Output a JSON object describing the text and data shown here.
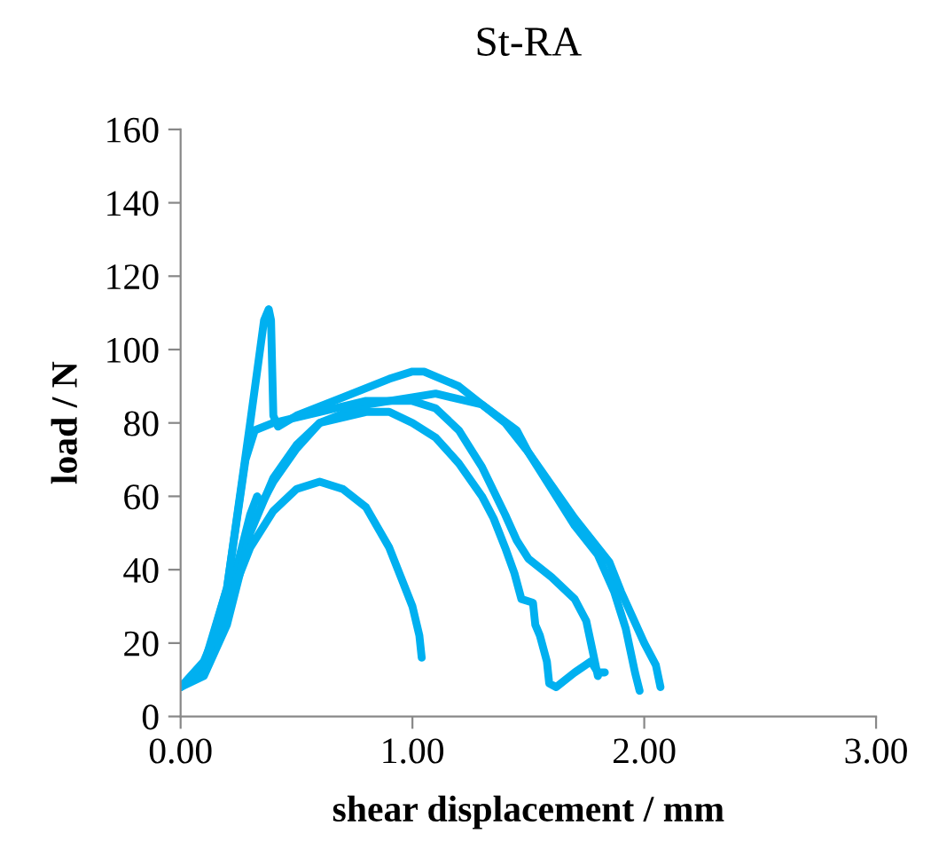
{
  "chart_data": {
    "type": "line",
    "title": "St-RA",
    "xlabel": "shear displacement / mm",
    "ylabel": "load / N",
    "xlim": [
      0,
      3
    ],
    "ylim": [
      0,
      160
    ],
    "xticks": [
      {
        "value": 0,
        "label": "0.00"
      },
      {
        "value": 1,
        "label": "1.00"
      },
      {
        "value": 2,
        "label": "2.00"
      },
      {
        "value": 3,
        "label": "3.00"
      }
    ],
    "yticks": [
      0,
      20,
      40,
      60,
      80,
      100,
      120,
      140,
      160
    ],
    "grid": false,
    "marker": "none",
    "line_style": "solid",
    "series": [
      {
        "color": "#00b0f0",
        "x": [
          0,
          0.1,
          0.2,
          0.3,
          0.36,
          0.38,
          0.39,
          0.4,
          0.42,
          0.5,
          0.7,
          0.9,
          1.0,
          1.05,
          1.2,
          1.4,
          1.5,
          1.6,
          1.7,
          1.8,
          1.85,
          1.9,
          1.95,
          2.0,
          2.05,
          2.07
        ],
        "values": [
          8,
          14,
          35,
          80,
          108,
          111,
          108,
          82,
          79,
          82,
          87,
          92,
          94,
          94,
          90,
          80,
          72,
          63,
          54,
          46,
          42,
          34,
          27,
          20,
          14,
          8
        ]
      },
      {
        "color": "#00b0f0",
        "x": [
          0,
          0.1,
          0.2,
          0.3,
          0.33,
          0.35,
          0.4,
          0.5,
          0.6,
          0.8,
          1.0,
          1.1,
          1.3,
          1.45,
          1.5,
          1.6,
          1.7,
          1.8,
          1.87,
          1.92,
          1.96,
          1.98
        ],
        "values": [
          8,
          12,
          30,
          55,
          60,
          58,
          64,
          73,
          80,
          85,
          87,
          88,
          85,
          78,
          72,
          62,
          52,
          44,
          34,
          24,
          12,
          7
        ]
      },
      {
        "color": "#00b0f0",
        "x": [
          0,
          0.1,
          0.2,
          0.3,
          0.4,
          0.5,
          0.6,
          0.8,
          0.9,
          1.0,
          1.1,
          1.2,
          1.3,
          1.35,
          1.4,
          1.44,
          1.47,
          1.52,
          1.53,
          1.55,
          1.58,
          1.59,
          1.62,
          1.7,
          1.77,
          1.8,
          1.83
        ],
        "values": [
          8,
          11,
          25,
          50,
          65,
          74,
          80,
          83,
          83,
          80,
          76,
          69,
          60,
          54,
          46,
          39,
          32,
          31,
          25,
          22,
          15,
          9,
          8,
          12,
          15,
          12,
          12
        ]
      },
      {
        "color": "#00b0f0",
        "x": [
          0,
          0.1,
          0.2,
          0.28,
          0.32,
          0.4,
          0.6,
          0.8,
          1.0,
          1.1,
          1.2,
          1.3,
          1.4,
          1.45,
          1.5,
          1.6,
          1.7,
          1.75,
          1.78,
          1.8
        ],
        "values": [
          8,
          13,
          35,
          70,
          78,
          80,
          83,
          86,
          86,
          84,
          78,
          68,
          55,
          48,
          43,
          38,
          32,
          26,
          17,
          11
        ]
      },
      {
        "color": "#00b0f0",
        "x": [
          0,
          0.1,
          0.2,
          0.3,
          0.4,
          0.5,
          0.6,
          0.7,
          0.8,
          0.9,
          0.95,
          1.0,
          1.03,
          1.04
        ],
        "values": [
          8,
          15,
          30,
          46,
          56,
          62,
          64,
          62,
          57,
          46,
          38,
          30,
          22,
          16
        ]
      }
    ]
  }
}
